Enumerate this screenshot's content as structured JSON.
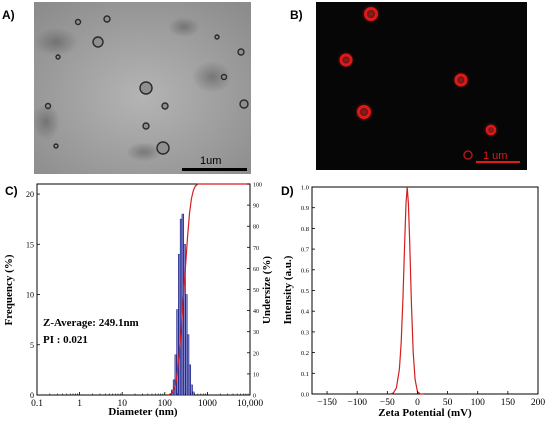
{
  "panels": {
    "a": {
      "label": "A)",
      "scale_bar": "1um"
    },
    "b": {
      "label": "B)",
      "scale_bar": "1 um"
    },
    "c": {
      "label": "C)"
    },
    "d": {
      "label": "D)"
    }
  },
  "colors": {
    "histogram_fill": "#2e34a8",
    "curve": "#d21f1f",
    "fluorescence": "#e01818"
  },
  "chart_data": [
    {
      "type": "bar",
      "title": "",
      "xlabel": "Diameter (nm)",
      "ylabel": "Frequency (%)",
      "y2label": "Undersize (%)",
      "xscale": "log",
      "xlim": [
        0.1,
        10000
      ],
      "ylim": [
        0,
        21
      ],
      "y2lim": [
        0,
        100
      ],
      "x_tick_labels": [
        "0.1",
        "1",
        "10",
        "100",
        "1000",
        "10,000"
      ],
      "y_tick_labels": [
        "0",
        "5",
        "10",
        "15",
        "20"
      ],
      "y2_tick_labels": [
        "0",
        "10",
        "20",
        "30",
        "40",
        "50",
        "60",
        "70",
        "80",
        "90",
        "100"
      ],
      "annotations": [
        "Z-Average:  249.1nm",
        "PI : 0.021"
      ],
      "grid": false,
      "series": [
        {
          "type": "bar",
          "x": [
            150,
            165,
            181,
            199,
            219,
            241,
            265,
            291,
            320,
            352,
            387,
            426,
            468
          ],
          "values": [
            0.5,
            1.5,
            4.0,
            8.5,
            14.0,
            17.5,
            18.0,
            15.0,
            10.0,
            6.0,
            3.0,
            1.0,
            0.3
          ]
        },
        {
          "type": "line",
          "axis": "y2",
          "x": [
            120,
            150,
            180,
            200,
            230,
            260,
            300,
            340,
            380,
            420,
            470,
            520,
            600,
            10000
          ],
          "values": [
            0,
            1,
            5,
            12,
            25,
            40,
            58,
            74,
            86,
            93,
            97,
            99,
            100,
            100
          ]
        }
      ]
    },
    {
      "type": "line",
      "title": "",
      "xlabel": "Zeta Potential (mV)",
      "ylabel": "Intensity (a.u.)",
      "xlim": [
        -175,
        200
      ],
      "ylim": [
        0,
        1.0
      ],
      "x_tick_labels": [
        "-150",
        "-100",
        "-50",
        "0",
        "50",
        "100",
        "150",
        "200"
      ],
      "y_tick_labels": [
        "0.0",
        "0.1",
        "0.2",
        "0.3",
        "0.4",
        "0.5",
        "0.6",
        "0.7",
        "0.8",
        "0.9",
        "1.0"
      ],
      "grid": false,
      "series": [
        {
          "x": [
            -45,
            -40,
            -35,
            -30,
            -27,
            -24,
            -21,
            -19,
            -17,
            -15,
            -13,
            -10,
            -7,
            -4,
            0,
            5,
            10
          ],
          "values": [
            0.0,
            0.005,
            0.03,
            0.12,
            0.25,
            0.47,
            0.75,
            0.92,
            1.0,
            0.92,
            0.75,
            0.44,
            0.2,
            0.07,
            0.01,
            0.0,
            0.0
          ]
        }
      ]
    }
  ]
}
